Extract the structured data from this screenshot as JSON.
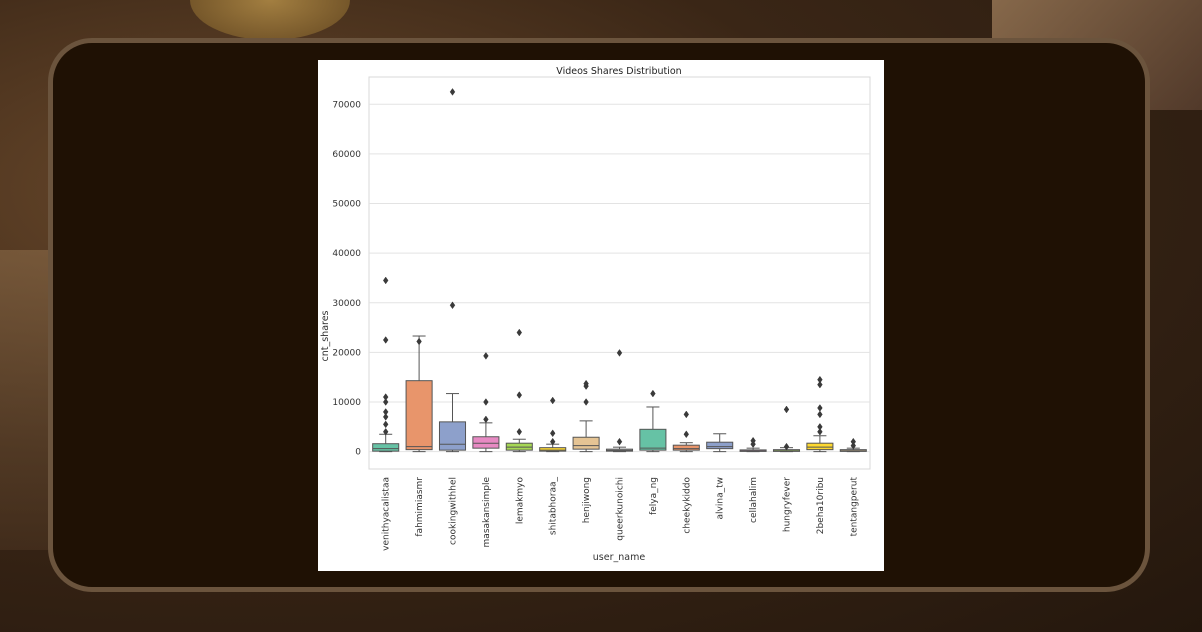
{
  "chart_data": {
    "type": "box",
    "title": "Videos Shares Distribution",
    "xlabel": "user_name",
    "ylabel": "cnt_shares",
    "ylim": [
      -3500,
      75500
    ],
    "yticks": [
      0,
      10000,
      20000,
      30000,
      40000,
      50000,
      60000,
      70000
    ],
    "grid": true,
    "series": [
      {
        "category": "venithyacalistaa",
        "color": "#66c2a5",
        "q1": 100,
        "median": 600,
        "q3": 1600,
        "whisker_low": 0,
        "whisker_high": 3500,
        "outliers": [
          4000,
          5500,
          7000,
          8000,
          10000,
          11000,
          22500,
          34500
        ]
      },
      {
        "category": "fahmimiasmr",
        "color": "#e8956b",
        "q1": 400,
        "median": 1000,
        "q3": 14300,
        "whisker_low": 0,
        "whisker_high": 23300,
        "outliers": [
          22200
        ]
      },
      {
        "category": "cookingwithhel",
        "color": "#8da0cb",
        "q1": 300,
        "median": 1500,
        "q3": 6000,
        "whisker_low": 0,
        "whisker_high": 11700,
        "outliers": [
          29500,
          72500
        ]
      },
      {
        "category": "masakansimple",
        "color": "#e78ac3",
        "q1": 700,
        "median": 1700,
        "q3": 3000,
        "whisker_low": 0,
        "whisker_high": 5800,
        "outliers": [
          6500,
          10000,
          19300
        ]
      },
      {
        "category": "lemakmyo",
        "color": "#a6d854",
        "q1": 300,
        "median": 900,
        "q3": 1700,
        "whisker_low": 0,
        "whisker_high": 2500,
        "outliers": [
          4000,
          11400,
          24000
        ]
      },
      {
        "category": "shitabhoraa_",
        "color": "#ffd92f",
        "q1": 100,
        "median": 300,
        "q3": 800,
        "whisker_low": 0,
        "whisker_high": 1500,
        "outliers": [
          2000,
          3700,
          10300
        ]
      },
      {
        "category": "henjiwong",
        "color": "#e5c494",
        "q1": 500,
        "median": 1200,
        "q3": 2900,
        "whisker_low": 0,
        "whisker_high": 6200,
        "outliers": [
          10000,
          13200,
          13700
        ]
      },
      {
        "category": "queerkunoichi",
        "color": "#b3b3b3",
        "q1": 100,
        "median": 250,
        "q3": 500,
        "whisker_low": 0,
        "whisker_high": 900,
        "outliers": [
          2000,
          19900
        ]
      },
      {
        "category": "felya_ng",
        "color": "#66c2a5",
        "q1": 300,
        "median": 700,
        "q3": 4500,
        "whisker_low": 0,
        "whisker_high": 9000,
        "outliers": [
          11700
        ]
      },
      {
        "category": "cheekykiddo",
        "color": "#e8956b",
        "q1": 300,
        "median": 600,
        "q3": 1300,
        "whisker_low": 0,
        "whisker_high": 1800,
        "outliers": [
          3500,
          7500
        ]
      },
      {
        "category": "alvina_tw",
        "color": "#8da0cb",
        "q1": 600,
        "median": 1000,
        "q3": 1900,
        "whisker_low": 0,
        "whisker_high": 3600,
        "outliers": []
      },
      {
        "category": "cellahalim",
        "color": "#e78ac3",
        "q1": 50,
        "median": 150,
        "q3": 350,
        "whisker_low": 0,
        "whisker_high": 700,
        "outliers": [
          1500,
          2200
        ]
      },
      {
        "category": "hungryfever",
        "color": "#a6d854",
        "q1": 50,
        "median": 150,
        "q3": 400,
        "whisker_low": 0,
        "whisker_high": 800,
        "outliers": [
          1000,
          8500
        ]
      },
      {
        "category": "2beha10ribu",
        "color": "#ffd92f",
        "q1": 400,
        "median": 900,
        "q3": 1700,
        "whisker_low": 0,
        "whisker_high": 3200,
        "outliers": [
          4000,
          5000,
          7500,
          8800,
          13500,
          14500
        ]
      },
      {
        "category": "tentangperut",
        "color": "#e5c494",
        "q1": 50,
        "median": 150,
        "q3": 400,
        "whisker_low": 0,
        "whisker_high": 700,
        "outliers": [
          1200,
          2000
        ]
      }
    ]
  }
}
